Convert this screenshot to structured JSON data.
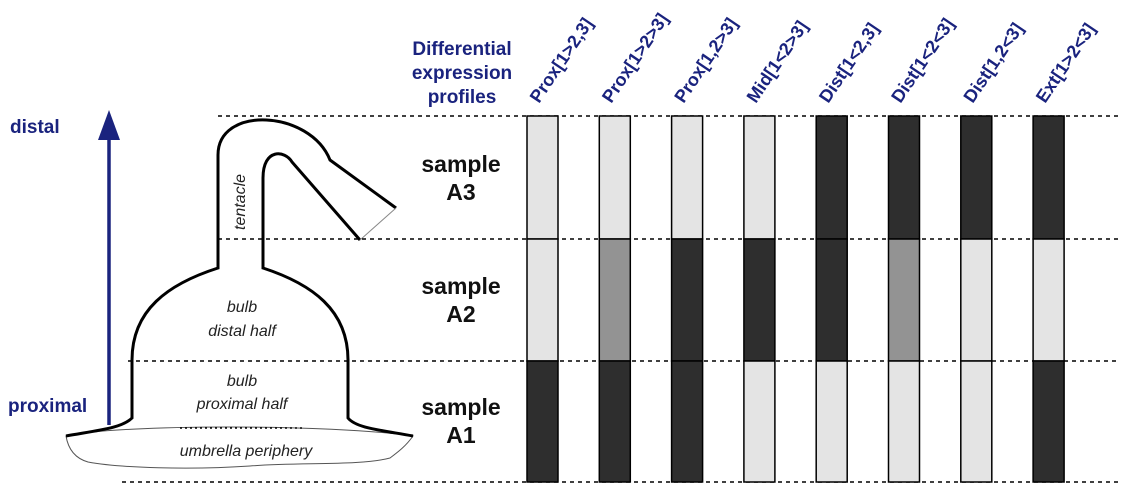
{
  "axis": {
    "distal_label": "distal",
    "proximal_label": "proximal",
    "color": "#1a237e"
  },
  "header": {
    "line1": "Differential",
    "line2": "expression",
    "line3": "profiles"
  },
  "organ": {
    "tentacle": "tentacle",
    "bulb_distal_1": "bulb",
    "bulb_distal_2": "distal half",
    "bulb_proximal_1": "bulb",
    "bulb_proximal_2": "proximal half",
    "umbrella": "umbrella periphery"
  },
  "samples": [
    {
      "line1": "sample",
      "line2": "A3"
    },
    {
      "line1": "sample",
      "line2": "A2"
    },
    {
      "line1": "sample",
      "line2": "A1"
    }
  ],
  "levels": {
    "low": "#e4e4e4",
    "mid": "#939393",
    "high": "#2e2e2e"
  },
  "profiles": [
    {
      "name": "Prox[1>2,3]",
      "levels": [
        "low",
        "low",
        "high"
      ]
    },
    {
      "name": "Prox[1>2>3]",
      "levels": [
        "low",
        "mid",
        "high"
      ]
    },
    {
      "name": "Prox[1,2>3]",
      "levels": [
        "low",
        "high",
        "high"
      ]
    },
    {
      "name": "Mid[1<2>3]",
      "levels": [
        "low",
        "high",
        "low"
      ]
    },
    {
      "name": "Dist[1<2,3]",
      "levels": [
        "high",
        "high",
        "low"
      ]
    },
    {
      "name": "Dist[1<2<3]",
      "levels": [
        "high",
        "mid",
        "low"
      ]
    },
    {
      "name": "Dist[1,2<3]",
      "levels": [
        "high",
        "low",
        "low"
      ]
    },
    {
      "name": "Ext[1>2<3]",
      "levels": [
        "high",
        "low",
        "high"
      ]
    }
  ]
}
